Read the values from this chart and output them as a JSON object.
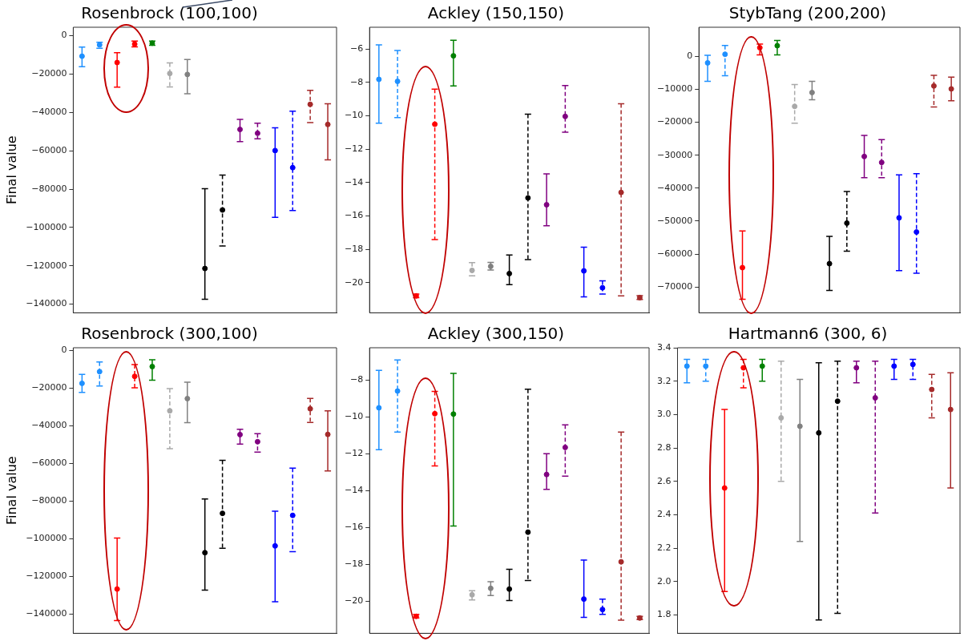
{
  "chart_data": [
    {
      "type": "scatter",
      "title": "Rosenbrock (100,100)",
      "marker": "circle",
      "ylabel": "Final value",
      "categories": [
        null,
        null,
        null,
        null,
        null,
        null,
        null,
        null,
        null,
        null,
        null,
        null,
        null,
        null,
        null
      ],
      "ylim": [
        -144500,
        4400
      ],
      "yticks": [
        -140000,
        -120000,
        -100000,
        -80000,
        -60000,
        -40000,
        -20000,
        0
      ],
      "tick_labels": "y",
      "series": [
        {
          "line_style": "solid",
          "colors": [
            "#1e90ff",
            null,
            "#ff0000",
            null,
            "#008000",
            null,
            "#808080",
            "#000000",
            null,
            "#800080",
            null,
            "#0000ff",
            null,
            null,
            "#a52a2a"
          ],
          "values": [
            -10700,
            null,
            -14000,
            null,
            -3900,
            null,
            -20200,
            -121400,
            null,
            -48900,
            null,
            -59900,
            null,
            null,
            -46300
          ],
          "errors": [
            [
              -16200,
              -5900
            ],
            null,
            [
              -26800,
              -8900
            ],
            null,
            [
              -5000,
              -2800
            ],
            null,
            [
              -30300,
              -12400
            ],
            [
              -137400,
              -79800
            ],
            null,
            [
              -55200,
              -43600
            ],
            null,
            [
              -94700,
              -48000
            ],
            null,
            null,
            [
              -64700,
              -35500
            ]
          ]
        },
        {
          "line_style": "dashed",
          "colors": [
            null,
            "#1e90ff",
            null,
            "#ff0000",
            null,
            "#a9a9a9",
            null,
            null,
            "#000000",
            null,
            "#800080",
            null,
            "#0000ff",
            "#a52a2a",
            null
          ],
          "values": [
            null,
            -4800,
            null,
            -4400,
            null,
            -19700,
            null,
            null,
            -90900,
            null,
            -50900,
            null,
            -68800,
            -35800,
            null
          ],
          "errors": [
            null,
            [
              -6600,
              -3400
            ],
            null,
            [
              -5800,
              -2800
            ],
            null,
            [
              -26700,
              -14200
            ],
            null,
            null,
            [
              -109700,
              -72700
            ],
            null,
            [
              -53800,
              -45600
            ],
            null,
            [
              -91200,
              -39400
            ],
            [
              -45300,
              -28500
            ],
            null
          ]
        }
      ]
    },
    {
      "type": "scatter",
      "title": "Ackley (150,150)",
      "marker": "circle",
      "categories": [
        null,
        null,
        null,
        null,
        null,
        null,
        null,
        null,
        null,
        null,
        null,
        null,
        null,
        null,
        null
      ],
      "ylim": [
        -21.8,
        -4.7
      ],
      "yticks": [
        -20,
        -18,
        -16,
        -14,
        -12,
        -10,
        -8,
        -6
      ],
      "tick_labels": "y",
      "series": [
        {
          "line_style": "solid",
          "colors": [
            "#1e90ff",
            null,
            "#ff0000",
            null,
            "#008000",
            null,
            "#808080",
            "#000000",
            null,
            "#800080",
            null,
            "#0000ff",
            null,
            null,
            "#a52a2a"
          ],
          "values": [
            -7.82,
            null,
            -20.79,
            null,
            -6.41,
            null,
            -19.02,
            -19.45,
            null,
            -15.33,
            null,
            -19.29,
            null,
            null,
            -20.89
          ],
          "errors": [
            [
              -10.45,
              -5.76
            ],
            null,
            [
              -20.89,
              -20.68
            ],
            null,
            [
              -8.22,
              -5.48
            ],
            null,
            [
              -19.24,
              -18.78
            ],
            [
              -20.11,
              -18.34
            ],
            null,
            [
              -16.59,
              -13.48
            ],
            null,
            [
              -20.84,
              -17.87
            ],
            null,
            null,
            [
              -21.0,
              -20.77
            ]
          ]
        },
        {
          "line_style": "dashed",
          "colors": [
            null,
            "#1e90ff",
            null,
            "#ff0000",
            null,
            "#a9a9a9",
            null,
            null,
            "#000000",
            null,
            "#800080",
            null,
            "#0000ff",
            "#a52a2a",
            null
          ],
          "values": [
            null,
            -7.94,
            null,
            -10.51,
            null,
            -19.26,
            null,
            null,
            -14.92,
            null,
            -10.04,
            null,
            -20.3,
            -14.59,
            null
          ],
          "errors": [
            null,
            [
              -10.11,
              -6.09
            ],
            null,
            [
              -17.42,
              -8.41
            ],
            null,
            [
              -19.58,
              -18.8
            ],
            null,
            null,
            [
              -18.62,
              -9.9
            ],
            null,
            [
              -10.98,
              -8.19
            ],
            null,
            [
              -20.68,
              -19.89
            ],
            [
              -20.79,
              -9.28
            ],
            null
          ]
        }
      ]
    },
    {
      "type": "scatter",
      "title": "StybTang (200,200)",
      "marker": "circle",
      "categories": [
        null,
        null,
        null,
        null,
        null,
        null,
        null,
        null,
        null,
        null,
        null,
        null,
        null,
        null,
        null
      ],
      "ylim": [
        -77800,
        8800
      ],
      "yticks": [
        -70000,
        -60000,
        -50000,
        -40000,
        -30000,
        -20000,
        -10000,
        0
      ],
      "tick_labels": "y",
      "series": [
        {
          "line_style": "solid",
          "colors": [
            "#1e90ff",
            null,
            "#ff0000",
            null,
            "#008000",
            null,
            "#808080",
            "#000000",
            null,
            "#800080",
            null,
            "#0000ff",
            null,
            null,
            "#a52a2a"
          ],
          "values": [
            -2000,
            null,
            -64100,
            null,
            3200,
            null,
            -11000,
            -62900,
            null,
            -30400,
            null,
            -49000,
            null,
            null,
            -9900
          ],
          "errors": [
            [
              -7600,
              300
            ],
            null,
            [
              -73700,
              -53000
            ],
            null,
            [
              400,
              4800
            ],
            null,
            [
              -13200,
              -7600
            ],
            [
              -71000,
              -54600
            ],
            null,
            [
              -36800,
              -24000
            ],
            null,
            [
              -65000,
              -36000
            ],
            null,
            null,
            [
              -13500,
              -6300
            ]
          ]
        },
        {
          "line_style": "dashed",
          "colors": [
            null,
            "#1e90ff",
            null,
            "#ff0000",
            null,
            "#a9a9a9",
            null,
            null,
            "#000000",
            null,
            "#800080",
            null,
            "#0000ff",
            "#a52a2a",
            null
          ],
          "values": [
            null,
            600,
            null,
            2600,
            null,
            -15200,
            null,
            null,
            -50600,
            null,
            -32200,
            null,
            -53300,
            -9000,
            null
          ],
          "errors": [
            null,
            [
              -5900,
              3300
            ],
            null,
            [
              400,
              3700
            ],
            null,
            [
              -20300,
              -8600
            ],
            null,
            null,
            [
              -59100,
              -41000
            ],
            null,
            [
              -36800,
              -25300
            ],
            null,
            [
              -65800,
              -35600
            ],
            [
              -15400,
              -5800
            ],
            null
          ]
        }
      ]
    },
    {
      "type": "scatter",
      "title": "Rosenbrock (300,100)",
      "marker": "circle",
      "ylabel": "Final value",
      "categories": [
        null,
        null,
        null,
        null,
        null,
        null,
        null,
        null,
        null,
        null,
        null,
        null,
        null,
        null,
        null
      ],
      "ylim": [
        -150300,
        1300
      ],
      "yticks": [
        -140000,
        -120000,
        -100000,
        -80000,
        -60000,
        -40000,
        -20000,
        0
      ],
      "tick_labels": "y",
      "series": [
        {
          "line_style": "solid",
          "colors": [
            "#1e90ff",
            null,
            "#ff0000",
            null,
            "#008000",
            null,
            "#808080",
            "#000000",
            null,
            "#800080",
            null,
            "#0000ff",
            null,
            null,
            "#a52a2a"
          ],
          "values": [
            -17600,
            null,
            -126800,
            null,
            -8700,
            null,
            -25700,
            -107500,
            null,
            -44800,
            null,
            -103900,
            null,
            null,
            -44700
          ],
          "errors": [
            [
              -22400,
              -12800
            ],
            null,
            [
              -143500,
              -99700
            ],
            null,
            [
              -15900,
              -5100
            ],
            null,
            [
              -38500,
              -17000
            ],
            [
              -127400,
              -79000
            ],
            null,
            [
              -49900,
              -42000
            ],
            null,
            [
              -133500,
              -85500
            ],
            null,
            null,
            [
              -64100,
              -32200
            ]
          ]
        },
        {
          "line_style": "dashed",
          "colors": [
            null,
            "#1e90ff",
            null,
            "#ff0000",
            null,
            "#a9a9a9",
            null,
            null,
            "#000000",
            null,
            "#800080",
            null,
            "#0000ff",
            "#a52a2a",
            null
          ],
          "values": [
            null,
            -11400,
            null,
            -13900,
            null,
            -32200,
            null,
            null,
            -86600,
            null,
            -48600,
            null,
            -87700,
            -31100,
            null
          ],
          "errors": [
            null,
            [
              -19000,
              -6300
            ],
            null,
            [
              -20000,
              -7600
            ],
            null,
            [
              -52300,
              -20400
            ],
            null,
            null,
            [
              -105100,
              -58500
            ],
            null,
            [
              -54100,
              -44300
            ],
            null,
            [
              -107000,
              -62600
            ],
            [
              -38400,
              -25600
            ],
            null
          ]
        }
      ]
    },
    {
      "type": "scatter",
      "title": "Ackley (300,150)",
      "marker": "circle",
      "categories": [
        null,
        null,
        null,
        null,
        null,
        null,
        null,
        null,
        null,
        null,
        null,
        null,
        null,
        null,
        null
      ],
      "ylim": [
        -21.75,
        -6.25
      ],
      "yticks": [
        -20,
        -18,
        -16,
        -14,
        -12,
        -10,
        -8
      ],
      "tick_labels": "y",
      "series": [
        {
          "line_style": "solid",
          "colors": [
            "#1e90ff",
            null,
            "#ff0000",
            null,
            "#008000",
            null,
            "#808080",
            "#000000",
            null,
            "#800080",
            null,
            "#0000ff",
            null,
            null,
            "#a52a2a"
          ],
          "values": [
            -9.51,
            null,
            -20.83,
            null,
            -9.85,
            null,
            -19.31,
            -19.35,
            null,
            -13.13,
            null,
            -19.89,
            null,
            null,
            -20.92
          ],
          "errors": [
            [
              -11.78,
              -7.48
            ],
            null,
            [
              -20.92,
              -20.72
            ],
            null,
            [
              -15.93,
              -7.64
            ],
            null,
            [
              -19.7,
              -18.95
            ],
            [
              -19.97,
              -18.28
            ],
            null,
            [
              -13.94,
              -12.0
            ],
            null,
            [
              -20.88,
              -17.77
            ],
            null,
            null,
            [
              -21.0,
              -20.83
            ]
          ]
        },
        {
          "line_style": "dashed",
          "colors": [
            null,
            "#1e90ff",
            null,
            "#ff0000",
            null,
            "#a9a9a9",
            null,
            null,
            "#000000",
            null,
            "#800080",
            null,
            "#0000ff",
            "#a52a2a",
            null
          ],
          "values": [
            null,
            -8.6,
            null,
            -9.83,
            null,
            -19.66,
            null,
            null,
            -16.26,
            null,
            -11.66,
            null,
            -20.46,
            -17.87,
            null
          ],
          "errors": [
            null,
            [
              -10.83,
              -6.91
            ],
            null,
            [
              -12.66,
              -8.62
            ],
            null,
            [
              -19.94,
              -19.44
            ],
            null,
            null,
            [
              -18.88,
              -8.5
            ],
            null,
            [
              -13.22,
              -10.44
            ],
            null,
            [
              -20.72,
              -19.9
            ],
            [
              -21.04,
              -10.83
            ],
            null
          ]
        }
      ]
    },
    {
      "type": "scatter",
      "title": "Hartmann6 (300, 6)",
      "marker": "circle",
      "categories": [
        null,
        null,
        null,
        null,
        null,
        null,
        null,
        null,
        null,
        null,
        null,
        null,
        null,
        null,
        null
      ],
      "ylim": [
        1.69,
        3.4
      ],
      "yticks": [
        {
          "value": 1.8,
          "label": "1.8"
        },
        {
          "value": 2.0,
          "label": "2.0"
        },
        {
          "value": 2.2,
          "label": "2.2"
        },
        {
          "value": 2.4,
          "label": "2.4"
        },
        {
          "value": 2.6,
          "label": "2.6"
        },
        {
          "value": 2.8,
          "label": "2.8"
        },
        {
          "value": 3.0,
          "label": "3.0"
        },
        {
          "value": 3.2,
          "label": "3.2"
        },
        {
          "value": 3.4,
          "label": "3.4"
        }
      ],
      "tick_labels": "y",
      "series": [
        {
          "line_style": "solid",
          "colors": [
            "#1e90ff",
            null,
            "#ff0000",
            null,
            "#008000",
            null,
            "#808080",
            "#000000",
            null,
            "#800080",
            null,
            "#0000ff",
            null,
            null,
            "#a52a2a"
          ],
          "values": [
            3.29,
            null,
            2.56,
            null,
            3.29,
            null,
            2.93,
            2.89,
            null,
            3.28,
            null,
            3.29,
            null,
            null,
            3.03
          ],
          "errors": [
            [
              3.19,
              3.33
            ],
            null,
            [
              1.94,
              3.03
            ],
            null,
            [
              3.2,
              3.33
            ],
            null,
            [
              2.24,
              3.21
            ],
            [
              1.77,
              3.31
            ],
            null,
            [
              3.19,
              3.32
            ],
            null,
            [
              3.21,
              3.33
            ],
            null,
            null,
            [
              2.56,
              3.25
            ]
          ]
        },
        {
          "line_style": "dashed",
          "colors": [
            null,
            "#1e90ff",
            null,
            "#ff0000",
            null,
            "#a9a9a9",
            null,
            null,
            "#000000",
            null,
            "#800080",
            null,
            "#0000ff",
            "#a52a2a",
            null
          ],
          "values": [
            null,
            3.29,
            null,
            3.28,
            null,
            2.98,
            null,
            null,
            3.08,
            null,
            3.1,
            null,
            3.3,
            3.15,
            null
          ],
          "errors": [
            null,
            [
              3.2,
              3.33
            ],
            null,
            [
              3.16,
              3.33
            ],
            null,
            [
              2.6,
              3.32
            ],
            null,
            null,
            [
              1.81,
              3.32
            ],
            null,
            [
              2.41,
              3.32
            ],
            null,
            [
              3.21,
              3.33
            ],
            [
              2.98,
              3.24
            ],
            null
          ]
        }
      ]
    }
  ]
}
